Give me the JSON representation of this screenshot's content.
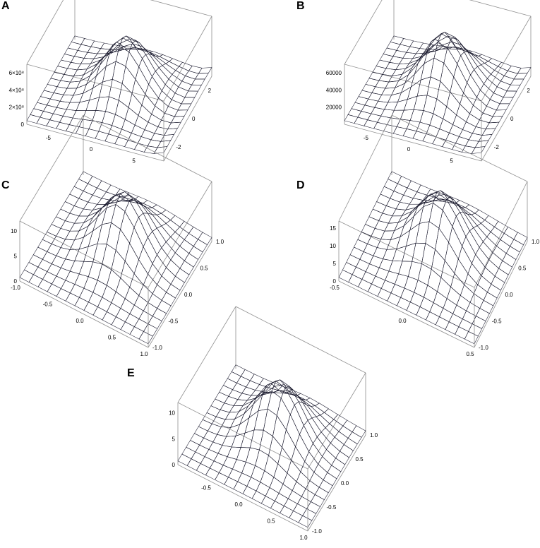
{
  "chart_data": [
    {
      "type": "surface3d",
      "panel": "A",
      "x_ticks": [
        "-5",
        "0",
        "5"
      ],
      "y_ticks": [
        "-2",
        "0",
        "2"
      ],
      "z_ticks": [
        "0",
        "2×10⁸",
        "4×10⁸",
        "6×10⁸"
      ],
      "xlim": [
        -8,
        8
      ],
      "ylim": [
        -3,
        3
      ],
      "zlim": [
        0,
        700000000.0
      ],
      "peak": {
        "x": 0,
        "y": 0,
        "z": 600000000.0
      },
      "surface_color": [
        "#6fb6f0",
        "#b58cf0",
        "#f3e6f6"
      ]
    },
    {
      "type": "surface3d",
      "panel": "B",
      "x_ticks": [
        "-5",
        "0",
        "5"
      ],
      "y_ticks": [
        "-2",
        "0",
        "2"
      ],
      "z_ticks": [
        "20000",
        "40000",
        "60000"
      ],
      "xlim": [
        -8,
        8
      ],
      "ylim": [
        -3,
        3
      ],
      "zlim": [
        0,
        70000
      ],
      "peak": {
        "x": 0,
        "y": 0,
        "z": 65000
      },
      "surface_color": [
        "#6fb6f0",
        "#b58cf0",
        "#f3e6f6"
      ]
    },
    {
      "type": "surface3d",
      "panel": "C",
      "x_ticks": [
        "-1.0",
        "-0.5",
        "0.0",
        "0.5",
        "1.0"
      ],
      "y_ticks": [
        "-1.0",
        "-0.5",
        "0.0",
        "0.5",
        "1.0"
      ],
      "z_ticks": [
        "0",
        "5",
        "10"
      ],
      "xlim": [
        -1,
        1
      ],
      "ylim": [
        -1,
        1
      ],
      "zlim": [
        0,
        12
      ],
      "peak": {
        "x": 0,
        "y": 0,
        "z": 11
      },
      "surface_color": [
        "#6fb6f0",
        "#b58cf0",
        "#f3e6f6"
      ]
    },
    {
      "type": "surface3d",
      "panel": "D",
      "x_ticks": [
        "-0.5",
        "0.0",
        "0.5"
      ],
      "y_ticks": [
        "-1.0",
        "-0.5",
        "0.0",
        "0.5",
        "1.0"
      ],
      "z_ticks": [
        "0",
        "5",
        "10",
        "15"
      ],
      "xlim": [
        -0.5,
        0.5
      ],
      "ylim": [
        -1,
        1
      ],
      "zlim": [
        0,
        17
      ],
      "peak": {
        "x": 0,
        "y": 0,
        "z": 16
      },
      "surface_color": [
        "#6fb6f0",
        "#b58cf0",
        "#f3e6f6"
      ]
    },
    {
      "type": "surface3d",
      "panel": "E",
      "x_ticks": [
        "-0.5",
        "0.0",
        "0.5",
        "1.0"
      ],
      "y_ticks": [
        "-1.0",
        "-0.5",
        "0.0",
        "0.5",
        "1.0"
      ],
      "z_ticks": [
        "0",
        "5",
        "10"
      ],
      "xlim": [
        -1,
        1
      ],
      "ylim": [
        -1,
        1
      ],
      "zlim": [
        0,
        12
      ],
      "peak": {
        "x": 0,
        "y": 0,
        "z": 11
      },
      "surface_color": [
        "#6fb6f0",
        "#b58cf0",
        "#f3e6f6"
      ]
    }
  ]
}
